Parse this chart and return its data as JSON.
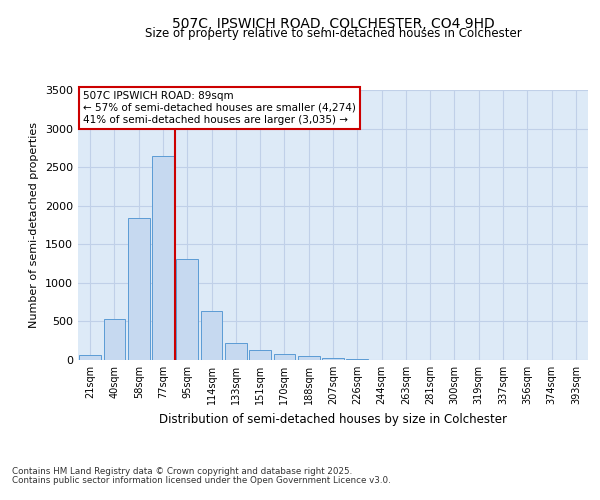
{
  "title_line1": "507C, IPSWICH ROAD, COLCHESTER, CO4 9HD",
  "title_line2": "Size of property relative to semi-detached houses in Colchester",
  "xlabel": "Distribution of semi-detached houses by size in Colchester",
  "ylabel": "Number of semi-detached properties",
  "categories": [
    "21sqm",
    "40sqm",
    "58sqm",
    "77sqm",
    "95sqm",
    "114sqm",
    "133sqm",
    "151sqm",
    "170sqm",
    "188sqm",
    "207sqm",
    "226sqm",
    "244sqm",
    "263sqm",
    "281sqm",
    "300sqm",
    "319sqm",
    "337sqm",
    "356sqm",
    "374sqm",
    "393sqm"
  ],
  "values": [
    70,
    530,
    1840,
    2640,
    1310,
    640,
    220,
    130,
    80,
    50,
    30,
    10,
    5,
    2,
    0,
    0,
    0,
    0,
    0,
    0,
    0
  ],
  "bar_color": "#c6d9f0",
  "bar_edge_color": "#5b9bd5",
  "grid_color": "#c0d0e8",
  "background_color": "#ddeaf7",
  "vline_color": "#cc0000",
  "annotation_title": "507C IPSWICH ROAD: 89sqm",
  "annotation_line1": "← 57% of semi-detached houses are smaller (4,274)",
  "annotation_line2": "41% of semi-detached houses are larger (3,035) →",
  "annotation_box_color": "#ffffff",
  "annotation_box_edge": "#cc0000",
  "ylim": [
    0,
    3500
  ],
  "yticks": [
    0,
    500,
    1000,
    1500,
    2000,
    2500,
    3000,
    3500
  ],
  "footer_line1": "Contains HM Land Registry data © Crown copyright and database right 2025.",
  "footer_line2": "Contains public sector information licensed under the Open Government Licence v3.0."
}
